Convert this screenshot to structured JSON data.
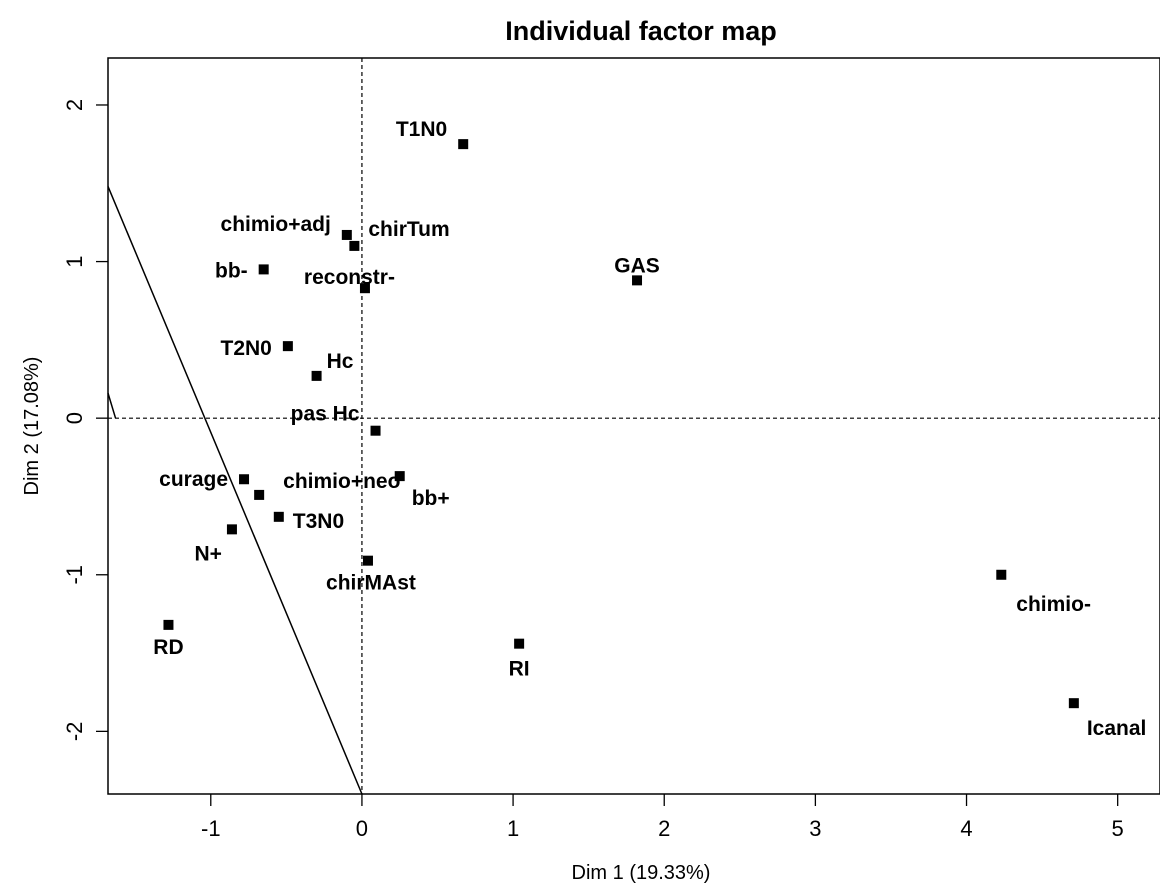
{
  "chart_data": {
    "type": "scatter",
    "title": "Individual factor map",
    "xlabel": "Dim 1 (19.33%)",
    "ylabel": "Dim 2 (17.08%)",
    "xlim": [
      -1.68,
      5.28
    ],
    "ylim": [
      -2.4,
      2.3
    ],
    "xticks": [
      -1,
      0,
      1,
      2,
      3,
      4,
      5
    ],
    "yticks": [
      -2,
      -1,
      0,
      1,
      2
    ],
    "xtick_labels": [
      "-1",
      "0",
      "1",
      "2",
      "3",
      "4",
      "5"
    ],
    "ytick_labels": [
      "-2",
      "-1",
      "0",
      "1",
      "2"
    ],
    "reference_lines": {
      "x": 0,
      "y": 0,
      "style": "dashed"
    },
    "extra_line": {
      "from": [
        -1.68,
        1.48
      ],
      "to": [
        0.0,
        -2.4
      ]
    },
    "extra_segment": {
      "from": [
        -1.68,
        0.16
      ],
      "to": [
        -1.63,
        0.0
      ]
    },
    "grid": false,
    "points": [
      {
        "label": "T1N0",
        "x": 0.67,
        "y": 1.75,
        "anchor": "end",
        "dx": -16,
        "dy": -8
      },
      {
        "label": "chimio+adj",
        "x": -0.1,
        "y": 1.17,
        "anchor": "end",
        "dx": -16,
        "dy": -4
      },
      {
        "label": "chirTum",
        "x": -0.05,
        "y": 1.1,
        "anchor": "start",
        "dx": 14,
        "dy": -10
      },
      {
        "label": "bb-",
        "x": -0.65,
        "y": 0.95,
        "anchor": "end",
        "dx": -16,
        "dy": 8
      },
      {
        "label": "reconstr-",
        "x": 0.02,
        "y": 0.83,
        "anchor": "end",
        "dx": 30,
        "dy": -4
      },
      {
        "label": "GAS",
        "x": 1.82,
        "y": 0.88,
        "anchor": "middle",
        "dx": 0,
        "dy": -8
      },
      {
        "label": "T2N0",
        "x": -0.49,
        "y": 0.46,
        "anchor": "end",
        "dx": -16,
        "dy": 9
      },
      {
        "label": "Hc",
        "x": -0.3,
        "y": 0.27,
        "anchor": "start",
        "dx": 10,
        "dy": -8
      },
      {
        "label": "pas Hc",
        "x": 0.09,
        "y": -0.08,
        "anchor": "end",
        "dx": -16,
        "dy": -10
      },
      {
        "label": "curage",
        "x": -0.78,
        "y": -0.39,
        "anchor": "end",
        "dx": -16,
        "dy": 7
      },
      {
        "label": "chimio+neo",
        "x": -0.68,
        "y": -0.49,
        "anchor": "start",
        "dx": 24,
        "dy": -7
      },
      {
        "label": "bb+",
        "x": 0.25,
        "y": -0.37,
        "anchor": "start",
        "dx": 12,
        "dy": 29
      },
      {
        "label": "T3N0",
        "x": -0.55,
        "y": -0.63,
        "anchor": "start",
        "dx": 14,
        "dy": 11
      },
      {
        "label": "N+",
        "x": -0.86,
        "y": -0.71,
        "anchor": "end",
        "dx": -10,
        "dy": 31
      },
      {
        "label": "chirMAst",
        "x": 0.04,
        "y": -0.91,
        "anchor": "middle",
        "dx": 3,
        "dy": 29
      },
      {
        "label": "chimio-",
        "x": 4.23,
        "y": -1.0,
        "anchor": "start",
        "dx": 15,
        "dy": 36
      },
      {
        "label": "RD",
        "x": -1.28,
        "y": -1.32,
        "anchor": "middle",
        "dx": 0,
        "dy": 29
      },
      {
        "label": "RI",
        "x": 1.04,
        "y": -1.44,
        "anchor": "middle",
        "dx": 0,
        "dy": 32
      },
      {
        "label": "Icanal",
        "x": 4.71,
        "y": -1.82,
        "anchor": "start",
        "dx": 13,
        "dy": 32
      }
    ]
  }
}
